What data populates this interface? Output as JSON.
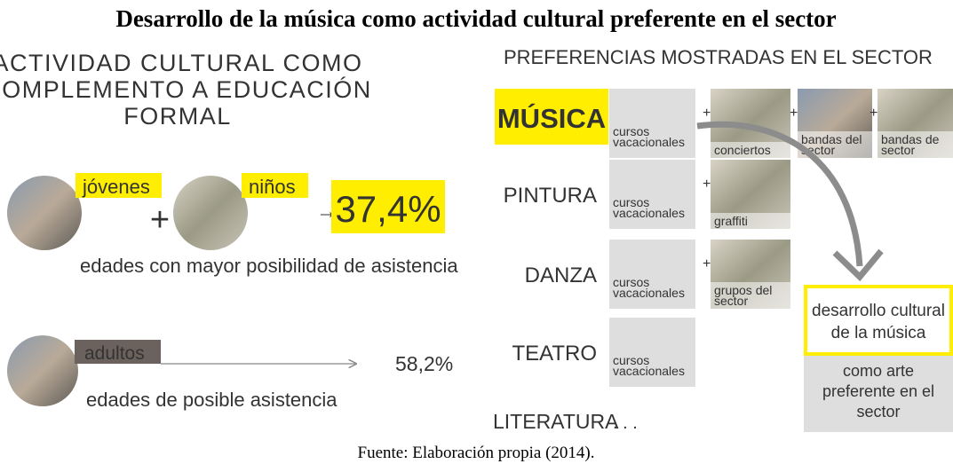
{
  "title": "Desarrollo de la música como actividad cultural preferente en el sector",
  "left": {
    "heading": [
      "ACTIVIDAD CULTURAL COMO",
      "COMPLEMENTO A EDUCACIÓN",
      "FORMAL"
    ],
    "group1": {
      "labels": [
        "jóvenes",
        "niños"
      ],
      "plus": "+",
      "arrow": "→",
      "percent": "37,4%",
      "caption": "edades con mayor posibilidad de asistencia"
    },
    "group2": {
      "label": "adultos",
      "percent": "58,2%",
      "caption": "edades de posible asistencia"
    }
  },
  "right": {
    "heading": "PREFERENCIAS MOSTRADAS EN EL SECTOR",
    "rows": [
      {
        "name": "MÚSICA",
        "base": [
          "cursos",
          "vacacionales"
        ],
        "extras": [
          [
            "conciertos"
          ],
          [
            "bandas del",
            "sector"
          ],
          [
            "bandas de",
            "sector"
          ]
        ]
      },
      {
        "name": "PINTURA",
        "base": [
          "cursos",
          "vacacionales"
        ],
        "extras": [
          [
            "graffiti"
          ]
        ]
      },
      {
        "name": "DANZA",
        "base": [
          "cursos",
          "vacacionales"
        ],
        "extras": [
          [
            "grupos del",
            "sector"
          ]
        ]
      },
      {
        "name": "TEATRO",
        "base": [
          "cursos",
          "vacacionales"
        ],
        "extras": []
      },
      {
        "name": "LITERATURA",
        "ellipsis": ". . ."
      }
    ],
    "plus": "+",
    "result": {
      "highlight": [
        "desarrollo cultural",
        "de la música"
      ],
      "note": [
        "como arte",
        "preferente en el",
        "sector"
      ]
    }
  },
  "source": "Fuente: Elaboración propia (2014)."
}
